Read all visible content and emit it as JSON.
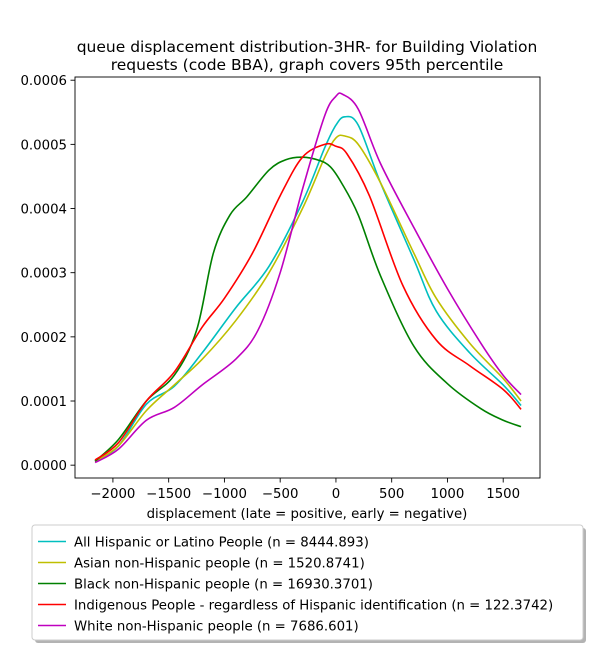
{
  "chart_data": {
    "type": "line",
    "title": [
      "queue displacement distribution-3HR-  for Building Violation",
      "requests (code BBA), graph covers 95th percentile"
    ],
    "xlabel": "displacement (late = positive, early = negative)",
    "ylabel": "",
    "xlim": [
      -2340,
      1830
    ],
    "ylim": [
      -2e-05,
      0.000605
    ],
    "xticks": [
      -2000,
      -1500,
      -1000,
      -500,
      0,
      500,
      1000,
      1500
    ],
    "xtick_labels": [
      "−2000",
      "−1500",
      "−1000",
      "−500",
      "0",
      "500",
      "1000",
      "1500"
    ],
    "yticks": [
      0.0,
      0.0001,
      0.0002,
      0.0003,
      0.0004,
      0.0005,
      0.0006
    ],
    "ytick_labels": [
      "0.0000",
      "0.0001",
      "0.0002",
      "0.0003",
      "0.0004",
      "0.0005",
      "0.0006"
    ],
    "grid": false,
    "legend_position": "below plot",
    "series": [
      {
        "name": "All Hispanic or Latino People (n = 8444.893)",
        "color": "#00bfbf",
        "x": [
          -2160,
          -1950,
          -1700,
          -1450,
          -1200,
          -900,
          -600,
          -300,
          -100,
          0,
          80,
          200,
          400,
          700,
          900,
          1200,
          1500,
          1660
        ],
        "y": [
          7e-06,
          3e-05,
          9.5e-05,
          0.000123,
          0.000175,
          0.000245,
          0.00031,
          0.00041,
          0.000495,
          0.00053,
          0.000543,
          0.00053,
          0.00044,
          0.00032,
          0.00024,
          0.000175,
          0.000125,
          9.3e-05
        ]
      },
      {
        "name": "Asian non-Hispanic people (n = 1520.8741)",
        "color": "#bfbf00",
        "x": [
          -2160,
          -1950,
          -1700,
          -1450,
          -1200,
          -900,
          -600,
          -300,
          -100,
          0,
          80,
          200,
          400,
          700,
          900,
          1200,
          1500,
          1660
        ],
        "y": [
          6e-06,
          3e-05,
          8.5e-05,
          0.000125,
          0.000165,
          0.000225,
          0.0003,
          0.0004,
          0.00048,
          0.00051,
          0.000513,
          0.0005,
          0.00044,
          0.00033,
          0.00026,
          0.00019,
          0.000135,
          0.0001
        ]
      },
      {
        "name": "Black non-Hispanic people (n = 16930.3701)",
        "color": "#008000",
        "x": [
          -2160,
          -1950,
          -1700,
          -1450,
          -1250,
          -1100,
          -950,
          -800,
          -600,
          -450,
          -300,
          -150,
          -50,
          50,
          200,
          400,
          700,
          1000,
          1300,
          1500,
          1660
        ],
        "y": [
          6e-06,
          4e-05,
          0.0001,
          0.00014,
          0.00021,
          0.00033,
          0.00039,
          0.000418,
          0.00046,
          0.000476,
          0.00048,
          0.000475,
          0.000465,
          0.00044,
          0.00039,
          0.000295,
          0.000185,
          0.000127,
          8.8e-05,
          7e-05,
          6e-05
        ]
      },
      {
        "name": "Indigenous People - regardless of Hispanic identification (n = 122.3742)",
        "color": "#ff0000",
        "x": [
          -2160,
          -1950,
          -1700,
          -1450,
          -1200,
          -1000,
          -750,
          -500,
          -300,
          -100,
          0,
          100,
          300,
          600,
          900,
          1200,
          1500,
          1660
        ],
        "y": [
          8e-06,
          3.5e-05,
          0.0001,
          0.000145,
          0.000215,
          0.00026,
          0.00033,
          0.00042,
          0.00048,
          0.0005,
          0.000497,
          0.000485,
          0.00042,
          0.00028,
          0.000195,
          0.000155,
          0.000118,
          8.7e-05
        ]
      },
      {
        "name": "White non-Hispanic people (n = 7686.601)",
        "color": "#bf00bf",
        "x": [
          -2160,
          -1950,
          -1700,
          -1450,
          -1200,
          -900,
          -700,
          -500,
          -300,
          -100,
          0,
          60,
          200,
          400,
          700,
          1000,
          1300,
          1500,
          1660
        ],
        "y": [
          4e-06,
          2.5e-05,
          7e-05,
          9e-05,
          0.000125,
          0.000165,
          0.00021,
          0.0003,
          0.00043,
          0.000545,
          0.000575,
          0.000578,
          0.000555,
          0.00047,
          0.00037,
          0.000275,
          0.00019,
          0.00014,
          0.00011
        ]
      }
    ]
  }
}
